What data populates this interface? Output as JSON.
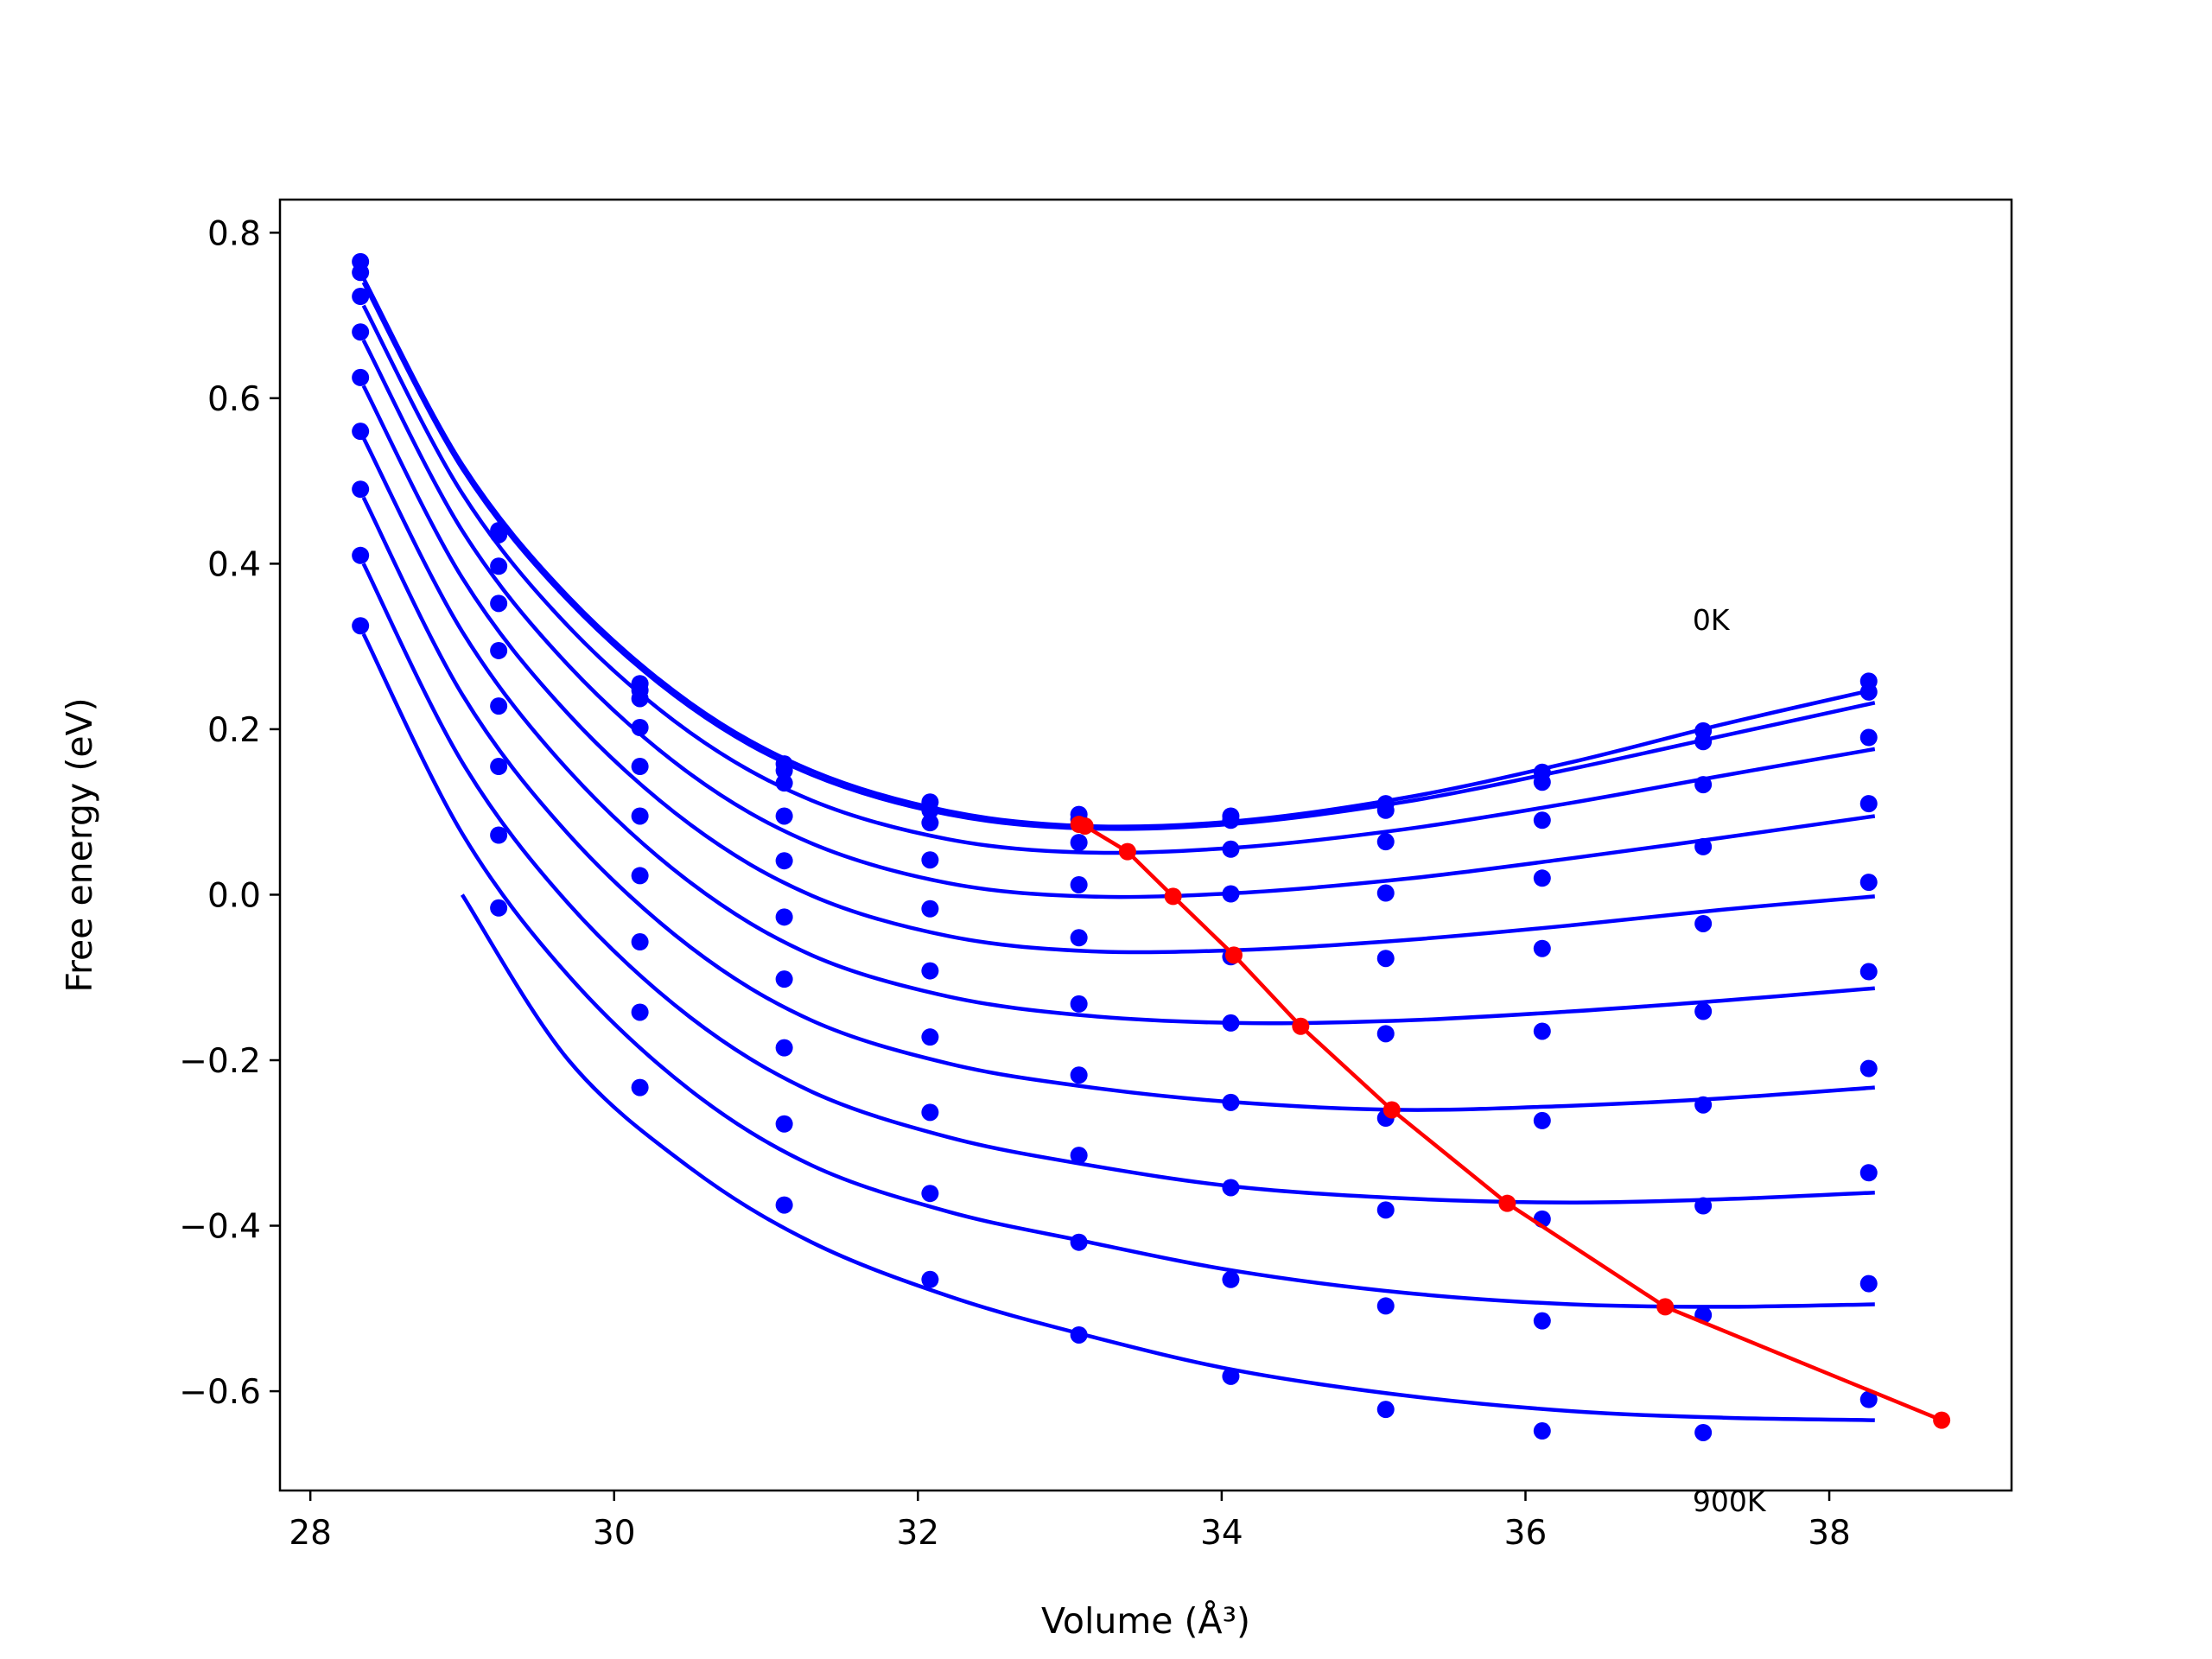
{
  "chart_data": {
    "type": "line",
    "title": "",
    "xlabel": "Volume (Å³)",
    "ylabel": "Free energy (eV)",
    "xlim": [
      27.8,
      39.2
    ],
    "ylim": [
      -0.72,
      0.84
    ],
    "xticks": [
      28,
      30,
      32,
      34,
      36,
      38
    ],
    "xtick_labels": [
      "28",
      "30",
      "32",
      "34",
      "36",
      "38"
    ],
    "yticks": [
      -0.6,
      -0.4,
      -0.2,
      0.0,
      0.2,
      0.4,
      0.6,
      0.8
    ],
    "ytick_labels": [
      "−0.6",
      "−0.4",
      "−0.2",
      "0.0",
      "0.2",
      "0.4",
      "0.6",
      "0.8"
    ],
    "grid": false,
    "annotations": [
      {
        "text": "0K",
        "x": 37.1,
        "y": 0.32
      },
      {
        "text": "900K",
        "x": 37.1,
        "y": -0.745
      }
    ],
    "colors": {
      "isotherm": "#0000ff",
      "minimum_path": "#ff0000"
    },
    "point_x": [
      28.33,
      29.24,
      30.17,
      31.12,
      32.08,
      33.06,
      34.06,
      35.08,
      36.11,
      37.17,
      38.26
    ],
    "point_series": [
      {
        "values": [
          0.765,
          0.44,
          0.255,
          0.158,
          0.112,
          0.097,
          0.095,
          0.11,
          0.148,
          0.198,
          0.258
        ]
      },
      {
        "values": [
          0.752,
          0.435,
          0.247,
          0.15,
          0.102,
          0.091,
          0.09,
          0.102,
          0.136,
          0.185,
          0.245
        ]
      },
      {
        "values": [
          0.723,
          0.397,
          0.237,
          0.135,
          0.087,
          0.063,
          0.055,
          0.064,
          0.09,
          0.133,
          0.19
        ]
      },
      {
        "values": [
          0.68,
          0.352,
          0.202,
          0.095,
          0.042,
          0.012,
          0.001,
          0.002,
          0.02,
          0.058,
          0.11
        ]
      },
      {
        "values": [
          0.625,
          0.295,
          0.155,
          0.041,
          -0.017,
          -0.052,
          -0.075,
          -0.077,
          -0.065,
          -0.035,
          0.015
        ]
      },
      {
        "values": [
          0.56,
          0.228,
          0.095,
          -0.027,
          -0.092,
          -0.132,
          -0.155,
          -0.168,
          -0.165,
          -0.141,
          -0.093
        ]
      },
      {
        "values": [
          0.49,
          0.155,
          0.023,
          -0.102,
          -0.172,
          -0.218,
          -0.251,
          -0.27,
          -0.273,
          -0.254,
          -0.21
        ]
      },
      {
        "values": [
          0.41,
          0.072,
          -0.057,
          -0.185,
          -0.263,
          -0.315,
          -0.354,
          -0.381,
          -0.392,
          -0.376,
          -0.336
        ]
      },
      {
        "values": [
          0.325,
          -0.016,
          -0.142,
          -0.277,
          -0.361,
          -0.42,
          -0.465,
          -0.497,
          -0.515,
          -0.508,
          -0.47
        ]
      },
      {
        "values": [
          null,
          null,
          -0.233,
          -0.375,
          -0.465,
          -0.532,
          -0.582,
          -0.622,
          -0.648,
          -0.65,
          -0.61
        ]
      }
    ],
    "fit_x": [
      28.35,
      29.0,
      29.7,
      30.5,
      31.3,
      32.2,
      33.1,
      34.1,
      35.2,
      36.3,
      37.3,
      38.3
    ],
    "fit_series": [
      {
        "values": [
          0.745,
          0.52,
          0.36,
          0.232,
          0.15,
          0.101,
          0.083,
          0.089,
          0.117,
          0.16,
          0.206,
          0.248
        ]
      },
      {
        "values": [
          0.74,
          0.515,
          0.355,
          0.227,
          0.145,
          0.097,
          0.08,
          0.086,
          0.112,
          0.152,
          0.192,
          0.232
        ]
      },
      {
        "values": [
          0.712,
          0.485,
          0.324,
          0.196,
          0.114,
          0.067,
          0.051,
          0.057,
          0.079,
          0.111,
          0.144,
          0.176
        ]
      },
      {
        "values": [
          0.67,
          0.44,
          0.277,
          0.146,
          0.062,
          0.014,
          -0.002,
          0.002,
          0.019,
          0.044,
          0.069,
          0.095
        ]
      },
      {
        "values": [
          0.615,
          0.383,
          0.218,
          0.085,
          -0.001,
          -0.05,
          -0.068,
          -0.067,
          -0.055,
          -0.037,
          -0.018,
          -0.002
        ]
      },
      {
        "values": [
          0.552,
          0.318,
          0.15,
          0.015,
          -0.073,
          -0.123,
          -0.146,
          -0.155,
          -0.152,
          -0.141,
          -0.128,
          -0.113
        ]
      },
      {
        "values": [
          0.48,
          0.242,
          0.073,
          -0.063,
          -0.152,
          -0.204,
          -0.232,
          -0.251,
          -0.26,
          -0.255,
          -0.246,
          -0.233
        ]
      },
      {
        "values": [
          0.4,
          0.16,
          -0.011,
          -0.148,
          -0.238,
          -0.293,
          -0.326,
          -0.353,
          -0.367,
          -0.372,
          -0.368,
          -0.36
        ]
      },
      {
        "values": [
          0.315,
          0.074,
          -0.098,
          -0.236,
          -0.327,
          -0.383,
          -0.419,
          -0.455,
          -0.481,
          -0.495,
          -0.498,
          -0.495
        ]
      },
      {
        "values": [
          null,
          0.0,
          -0.2,
          -0.33,
          -0.42,
          -0.485,
          -0.532,
          -0.575,
          -0.605,
          -0.624,
          -0.632,
          -0.635
        ]
      }
    ],
    "minimum_path": {
      "x": [
        33.06,
        33.1,
        33.38,
        33.68,
        34.08,
        34.52,
        35.12,
        35.88,
        36.92,
        38.74
      ],
      "y": [
        0.085,
        0.083,
        0.052,
        -0.002,
        -0.073,
        -0.159,
        -0.26,
        -0.373,
        -0.498,
        -0.635
      ]
    }
  }
}
